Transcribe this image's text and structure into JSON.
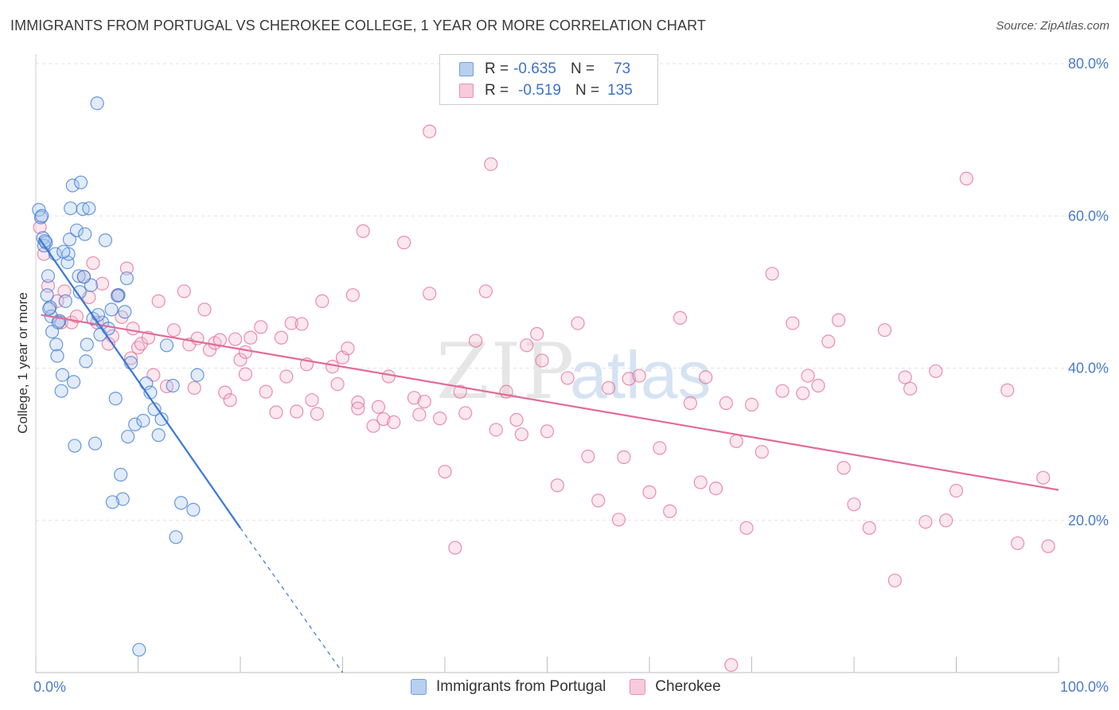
{
  "title": "IMMIGRANTS FROM PORTUGAL VS CHEROKEE COLLEGE, 1 YEAR OR MORE CORRELATION CHART",
  "source": "Source: ZipAtlas.com",
  "watermark": {
    "zip": "ZIP",
    "atlas": "atlas"
  },
  "legend": {
    "rows": [
      {
        "r_label": "R =",
        "r_value": "-0.635",
        "n_label": "N =",
        "n_value": "73"
      },
      {
        "r_label": "R =",
        "r_value": "-0.519",
        "n_label": "N =",
        "n_value": "135"
      }
    ]
  },
  "bottom_legend": [
    {
      "label": "Immigrants from Portugal"
    },
    {
      "label": "Cherokee"
    }
  ],
  "colors": {
    "blue": "#3a78d4",
    "blue_fill": "#aac6ee",
    "pink": "#e26b96",
    "pink_fill": "#f4b9cf",
    "tick": "#4a7cc9",
    "grid": "#e2e2e2"
  },
  "chart_data": {
    "type": "scatter",
    "title": "IMMIGRANTS FROM PORTUGAL VS CHEROKEE COLLEGE, 1 YEAR OR MORE CORRELATION CHART",
    "xlabel": "",
    "ylabel": "College, 1 year or more",
    "xlim": [
      0,
      100
    ],
    "ylim": [
      0,
      80
    ],
    "x_tick_labels": [
      "0.0%",
      "100.0%"
    ],
    "y_ticks": [
      20,
      40,
      60,
      80
    ],
    "y_tick_labels": [
      "20.0%",
      "40.0%",
      "60.0%",
      "80.0%"
    ],
    "grid": true,
    "legend_position": "top-center",
    "series": [
      {
        "name": "Immigrants from Portugal",
        "color": "#3a78d4",
        "r": -0.635,
        "n": 73,
        "trend": {
          "x1": 0.3,
          "y1": 57.1,
          "x2": 20,
          "y2": 19.0,
          "dashed_to_x": 30,
          "dashed_to_y": 0
        },
        "points": [
          [
            0.3,
            60.8
          ],
          [
            0.5,
            59.8
          ],
          [
            0.7,
            57.1
          ],
          [
            0.8,
            56.1
          ],
          [
            1.0,
            56.5
          ],
          [
            1.2,
            52.1
          ],
          [
            1.1,
            49.6
          ],
          [
            1.4,
            48.0
          ],
          [
            1.5,
            46.8
          ],
          [
            1.6,
            44.8
          ],
          [
            2.0,
            43.1
          ],
          [
            2.1,
            41.6
          ],
          [
            2.3,
            46.2
          ],
          [
            2.5,
            37.0
          ],
          [
            2.6,
            39.1
          ],
          [
            2.9,
            48.8
          ],
          [
            3.1,
            53.9
          ],
          [
            3.2,
            55.0
          ],
          [
            3.3,
            56.9
          ],
          [
            3.4,
            61.0
          ],
          [
            3.6,
            64.0
          ],
          [
            3.7,
            38.2
          ],
          [
            3.8,
            29.8
          ],
          [
            4.0,
            58.1
          ],
          [
            4.2,
            52.1
          ],
          [
            4.3,
            50.0
          ],
          [
            4.4,
            64.4
          ],
          [
            4.6,
            60.9
          ],
          [
            4.8,
            57.6
          ],
          [
            4.9,
            40.9
          ],
          [
            5.0,
            43.1
          ],
          [
            5.4,
            50.9
          ],
          [
            5.6,
            46.5
          ],
          [
            5.8,
            30.1
          ],
          [
            6.0,
            74.8
          ],
          [
            6.3,
            44.4
          ],
          [
            6.5,
            46.0
          ],
          [
            6.8,
            56.8
          ],
          [
            7.1,
            45.2
          ],
          [
            7.4,
            47.7
          ],
          [
            7.8,
            36.0
          ],
          [
            8.1,
            49.6
          ],
          [
            8.3,
            26.0
          ],
          [
            8.5,
            22.8
          ],
          [
            8.7,
            47.4
          ],
          [
            8.9,
            51.8
          ],
          [
            9.0,
            31.0
          ],
          [
            9.3,
            40.7
          ],
          [
            9.7,
            32.6
          ],
          [
            10.1,
            3.0
          ],
          [
            10.5,
            33.1
          ],
          [
            10.8,
            38.0
          ],
          [
            11.2,
            36.8
          ],
          [
            11.6,
            34.6
          ],
          [
            12.0,
            31.2
          ],
          [
            12.3,
            33.3
          ],
          [
            12.8,
            43.0
          ],
          [
            13.4,
            37.7
          ],
          [
            13.7,
            17.8
          ],
          [
            14.2,
            22.3
          ],
          [
            15.4,
            21.4
          ],
          [
            15.8,
            39.1
          ],
          [
            7.5,
            22.4
          ],
          [
            1.9,
            55.0
          ],
          [
            2.7,
            55.3
          ],
          [
            0.9,
            56.7
          ],
          [
            5.2,
            61.0
          ],
          [
            4.7,
            52.0
          ],
          [
            6.1,
            47.0
          ],
          [
            8.0,
            49.5
          ],
          [
            1.3,
            47.8
          ],
          [
            2.2,
            46.0
          ],
          [
            0.6,
            60.0
          ]
        ]
      },
      {
        "name": "Cherokee",
        "color": "#e26b96",
        "r": -0.519,
        "n": 135,
        "trend": {
          "x1": 0.5,
          "y1": 47.0,
          "x2": 100,
          "y2": 24.0
        },
        "points": [
          [
            0.4,
            58.5
          ],
          [
            0.8,
            55.0
          ],
          [
            1.2,
            50.8
          ],
          [
            2.1,
            48.8
          ],
          [
            2.5,
            46.0
          ],
          [
            2.8,
            50.1
          ],
          [
            3.5,
            46.0
          ],
          [
            4.0,
            46.8
          ],
          [
            4.7,
            52.0
          ],
          [
            5.2,
            49.3
          ],
          [
            5.6,
            53.8
          ],
          [
            6.0,
            46.0
          ],
          [
            6.5,
            51.1
          ],
          [
            7.1,
            43.2
          ],
          [
            7.5,
            44.2
          ],
          [
            8.0,
            49.6
          ],
          [
            8.4,
            46.7
          ],
          [
            8.9,
            53.1
          ],
          [
            9.3,
            41.3
          ],
          [
            10.0,
            42.7
          ],
          [
            10.3,
            43.2
          ],
          [
            11.0,
            44.0
          ],
          [
            11.5,
            39.1
          ],
          [
            12.0,
            48.8
          ],
          [
            12.8,
            37.6
          ],
          [
            13.5,
            45.0
          ],
          [
            14.5,
            50.1
          ],
          [
            15.0,
            43.1
          ],
          [
            15.8,
            43.9
          ],
          [
            16.5,
            47.7
          ],
          [
            17.0,
            42.4
          ],
          [
            17.5,
            43.3
          ],
          [
            18.0,
            43.7
          ],
          [
            18.5,
            36.8
          ],
          [
            19.0,
            35.8
          ],
          [
            19.5,
            43.8
          ],
          [
            20.0,
            41.1
          ],
          [
            20.5,
            42.1
          ],
          [
            21.0,
            44.0
          ],
          [
            22.0,
            45.4
          ],
          [
            22.5,
            36.9
          ],
          [
            23.5,
            34.2
          ],
          [
            24.0,
            44.0
          ],
          [
            24.5,
            38.9
          ],
          [
            25.0,
            45.9
          ],
          [
            25.5,
            34.3
          ],
          [
            26.5,
            40.5
          ],
          [
            27.0,
            35.8
          ],
          [
            27.5,
            34.0
          ],
          [
            28.0,
            48.8
          ],
          [
            29.0,
            40.2
          ],
          [
            29.5,
            37.9
          ],
          [
            30.0,
            41.4
          ],
          [
            30.5,
            42.6
          ],
          [
            31.0,
            49.6
          ],
          [
            31.5,
            35.5
          ],
          [
            32.0,
            58.0
          ],
          [
            33.0,
            32.4
          ],
          [
            33.5,
            34.9
          ],
          [
            34.0,
            33.3
          ],
          [
            34.5,
            38.9
          ],
          [
            35.0,
            32.9
          ],
          [
            36.0,
            56.5
          ],
          [
            37.0,
            36.1
          ],
          [
            37.5,
            33.9
          ],
          [
            38.0,
            35.6
          ],
          [
            38.5,
            49.8
          ],
          [
            39.5,
            33.4
          ],
          [
            40.0,
            26.4
          ],
          [
            41.0,
            16.4
          ],
          [
            41.5,
            36.9
          ],
          [
            42.0,
            34.1
          ],
          [
            43.0,
            43.6
          ],
          [
            44.0,
            50.1
          ],
          [
            45.0,
            31.9
          ],
          [
            46.0,
            36.9
          ],
          [
            47.0,
            33.2
          ],
          [
            47.5,
            31.3
          ],
          [
            48.0,
            43.0
          ],
          [
            49.0,
            44.5
          ],
          [
            49.5,
            41.0
          ],
          [
            50.0,
            31.7
          ],
          [
            51.0,
            24.6
          ],
          [
            52.0,
            38.7
          ],
          [
            53.0,
            45.9
          ],
          [
            54.0,
            28.4
          ],
          [
            55.0,
            22.6
          ],
          [
            56.0,
            37.4
          ],
          [
            57.0,
            20.1
          ],
          [
            57.5,
            28.3
          ],
          [
            58.0,
            38.6
          ],
          [
            59.0,
            39.0
          ],
          [
            60.0,
            23.7
          ],
          [
            61.0,
            29.5
          ],
          [
            62.0,
            21.2
          ],
          [
            63.0,
            46.6
          ],
          [
            64.0,
            35.4
          ],
          [
            65.0,
            25.0
          ],
          [
            65.5,
            38.8
          ],
          [
            66.5,
            24.2
          ],
          [
            67.5,
            35.4
          ],
          [
            68.5,
            30.4
          ],
          [
            69.5,
            19.0
          ],
          [
            70.0,
            35.2
          ],
          [
            71.0,
            29.0
          ],
          [
            72.0,
            52.4
          ],
          [
            73.0,
            37.0
          ],
          [
            74.0,
            45.9
          ],
          [
            75.0,
            36.7
          ],
          [
            75.5,
            39.0
          ],
          [
            76.5,
            37.7
          ],
          [
            77.5,
            43.5
          ],
          [
            78.5,
            46.3
          ],
          [
            79.0,
            26.9
          ],
          [
            80.0,
            22.1
          ],
          [
            81.5,
            19.0
          ],
          [
            83.0,
            45.0
          ],
          [
            84.0,
            12.1
          ],
          [
            85.0,
            38.8
          ],
          [
            85.5,
            37.3
          ],
          [
            87.0,
            19.8
          ],
          [
            88.0,
            39.6
          ],
          [
            89.0,
            20.0
          ],
          [
            90.0,
            23.9
          ],
          [
            91.0,
            64.9
          ],
          [
            95.0,
            37.1
          ],
          [
            96.0,
            17.0
          ],
          [
            98.5,
            25.6
          ],
          [
            99.0,
            16.6
          ],
          [
            68.0,
            1.0
          ],
          [
            38.5,
            71.1
          ],
          [
            44.5,
            66.8
          ],
          [
            20.5,
            39.2
          ],
          [
            15.5,
            37.4
          ],
          [
            9.5,
            45.2
          ],
          [
            31.5,
            34.7
          ],
          [
            26.0,
            45.8
          ]
        ]
      }
    ]
  }
}
